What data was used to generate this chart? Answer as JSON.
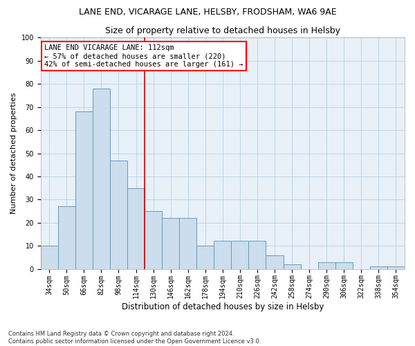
{
  "title": "LANE END, VICARAGE LANE, HELSBY, FRODSHAM, WA6 9AE",
  "subtitle": "Size of property relative to detached houses in Helsby",
  "xlabel": "Distribution of detached houses by size in Helsby",
  "ylabel": "Number of detached properties",
  "categories": [
    "34sqm",
    "50sqm",
    "66sqm",
    "82sqm",
    "98sqm",
    "114sqm",
    "130sqm",
    "146sqm",
    "162sqm",
    "178sqm",
    "194sqm",
    "210sqm",
    "226sqm",
    "242sqm",
    "258sqm",
    "274sqm",
    "290sqm",
    "306sqm",
    "322sqm",
    "338sqm",
    "354sqm"
  ],
  "values": [
    10,
    27,
    68,
    78,
    47,
    35,
    25,
    22,
    22,
    10,
    12,
    12,
    12,
    6,
    2,
    0,
    3,
    3,
    0,
    1,
    1
  ],
  "bar_color": "#ccdded",
  "bar_edge_color": "#6699bb",
  "annotation_line1": "LANE END VICARAGE LANE: 112sqm",
  "annotation_line2": "← 57% of detached houses are smaller (220)",
  "annotation_line3": "42% of semi-detached houses are larger (161) →",
  "annotation_box_color": "white",
  "annotation_box_edge_color": "red",
  "vline_color": "#cc0000",
  "ylim": [
    0,
    100
  ],
  "yticks": [
    0,
    10,
    20,
    30,
    40,
    50,
    60,
    70,
    80,
    90,
    100
  ],
  "footnote": "Contains HM Land Registry data © Crown copyright and database right 2024.\nContains public sector information licensed under the Open Government Licence v3.0.",
  "title_fontsize": 9,
  "subtitle_fontsize": 9,
  "xlabel_fontsize": 8.5,
  "ylabel_fontsize": 8,
  "tick_fontsize": 7,
  "annotation_fontsize": 7.5,
  "footnote_fontsize": 6,
  "vline_x": 5.5
}
